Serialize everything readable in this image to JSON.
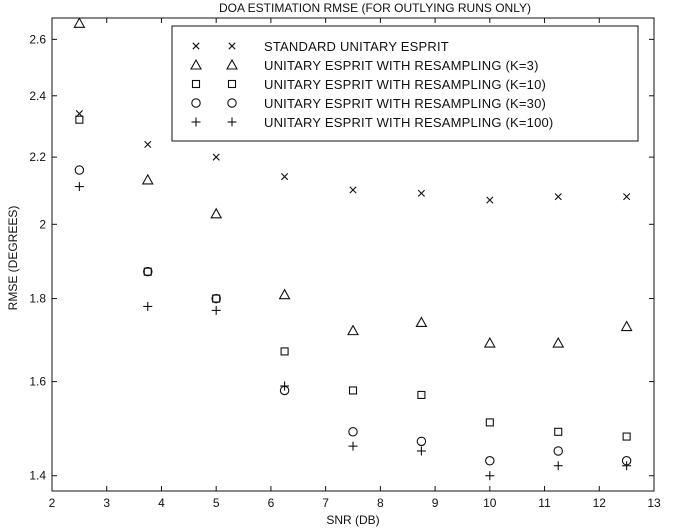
{
  "chart_data": {
    "type": "scatter",
    "title": "DOA ESTIMATION RMSE (FOR OUTLYING RUNS ONLY)",
    "xlabel": "SNR (DB)",
    "ylabel": "RMSE (DEGREES)",
    "xlim": [
      2,
      13
    ],
    "ylim": [
      1.37,
      2.68
    ],
    "yscale": "log",
    "xticks": [
      "2",
      "3",
      "4",
      "5",
      "6",
      "7",
      "8",
      "9",
      "10",
      "11",
      "12",
      "13"
    ],
    "yticks": [
      "1.4",
      "1.6",
      "1.8",
      "2",
      "2.2",
      "2.4",
      "2.6"
    ],
    "grid": false,
    "legend_position": "top-right",
    "x": [
      2.5,
      3.75,
      5,
      6.25,
      7.5,
      8.75,
      10,
      11.25,
      12.5
    ],
    "series": [
      {
        "name": "STANDARD UNITARY ESPRIT",
        "marker": "x",
        "values": [
          2.34,
          2.24,
          2.2,
          2.14,
          2.1,
          2.09,
          2.07,
          2.08,
          2.08
        ]
      },
      {
        "name": "UNITARY ESPRIT WITH RESAMPLING (K=3)",
        "marker": "triangle",
        "values": [
          2.66,
          2.13,
          2.03,
          1.81,
          1.72,
          1.74,
          1.69,
          1.69,
          1.73
        ]
      },
      {
        "name": "UNITARY ESPRIT WITH RESAMPLING (K=10)",
        "marker": "square",
        "values": [
          2.32,
          1.87,
          1.8,
          1.67,
          1.58,
          1.57,
          1.51,
          1.49,
          1.48
        ]
      },
      {
        "name": "UNITARY ESPRIT WITH RESAMPLING (K=30)",
        "marker": "circle",
        "values": [
          2.16,
          1.87,
          1.8,
          1.58,
          1.49,
          1.47,
          1.43,
          1.45,
          1.43
        ]
      },
      {
        "name": "UNITARY ESPRIT WITH RESAMPLING (K=100)",
        "marker": "plus",
        "values": [
          2.11,
          1.78,
          1.77,
          1.59,
          1.46,
          1.45,
          1.4,
          1.42,
          1.42
        ]
      }
    ]
  }
}
